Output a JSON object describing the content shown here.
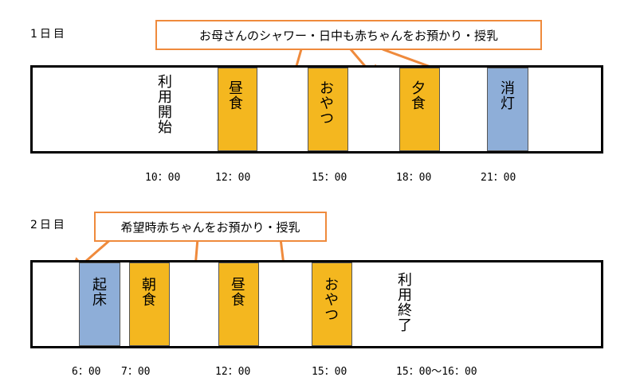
{
  "day1": {
    "label": "1日目",
    "callout": "お母さんのシャワー・日中も赤ちゃんをお預かり・授乳",
    "start_label": "利用開始",
    "blocks": [
      "昼食",
      "おやつ",
      "夕食",
      "消灯"
    ],
    "times": [
      "10：00",
      "12：00",
      "15：00",
      "18：00",
      "21：00"
    ]
  },
  "day2": {
    "label": "2日目",
    "callout": "希望時赤ちゃんをお預かり・授乳",
    "end_label": "利用終了",
    "blocks": [
      "起床",
      "朝食",
      "昼食",
      "おやつ"
    ],
    "times": [
      "6：00",
      "7：00",
      "12：00",
      "15：00",
      "15：00～16：00"
    ]
  },
  "colors": {
    "meal": "#f4b71f",
    "sleep": "#8eaed8",
    "callout_border": "#ef8a3c"
  }
}
